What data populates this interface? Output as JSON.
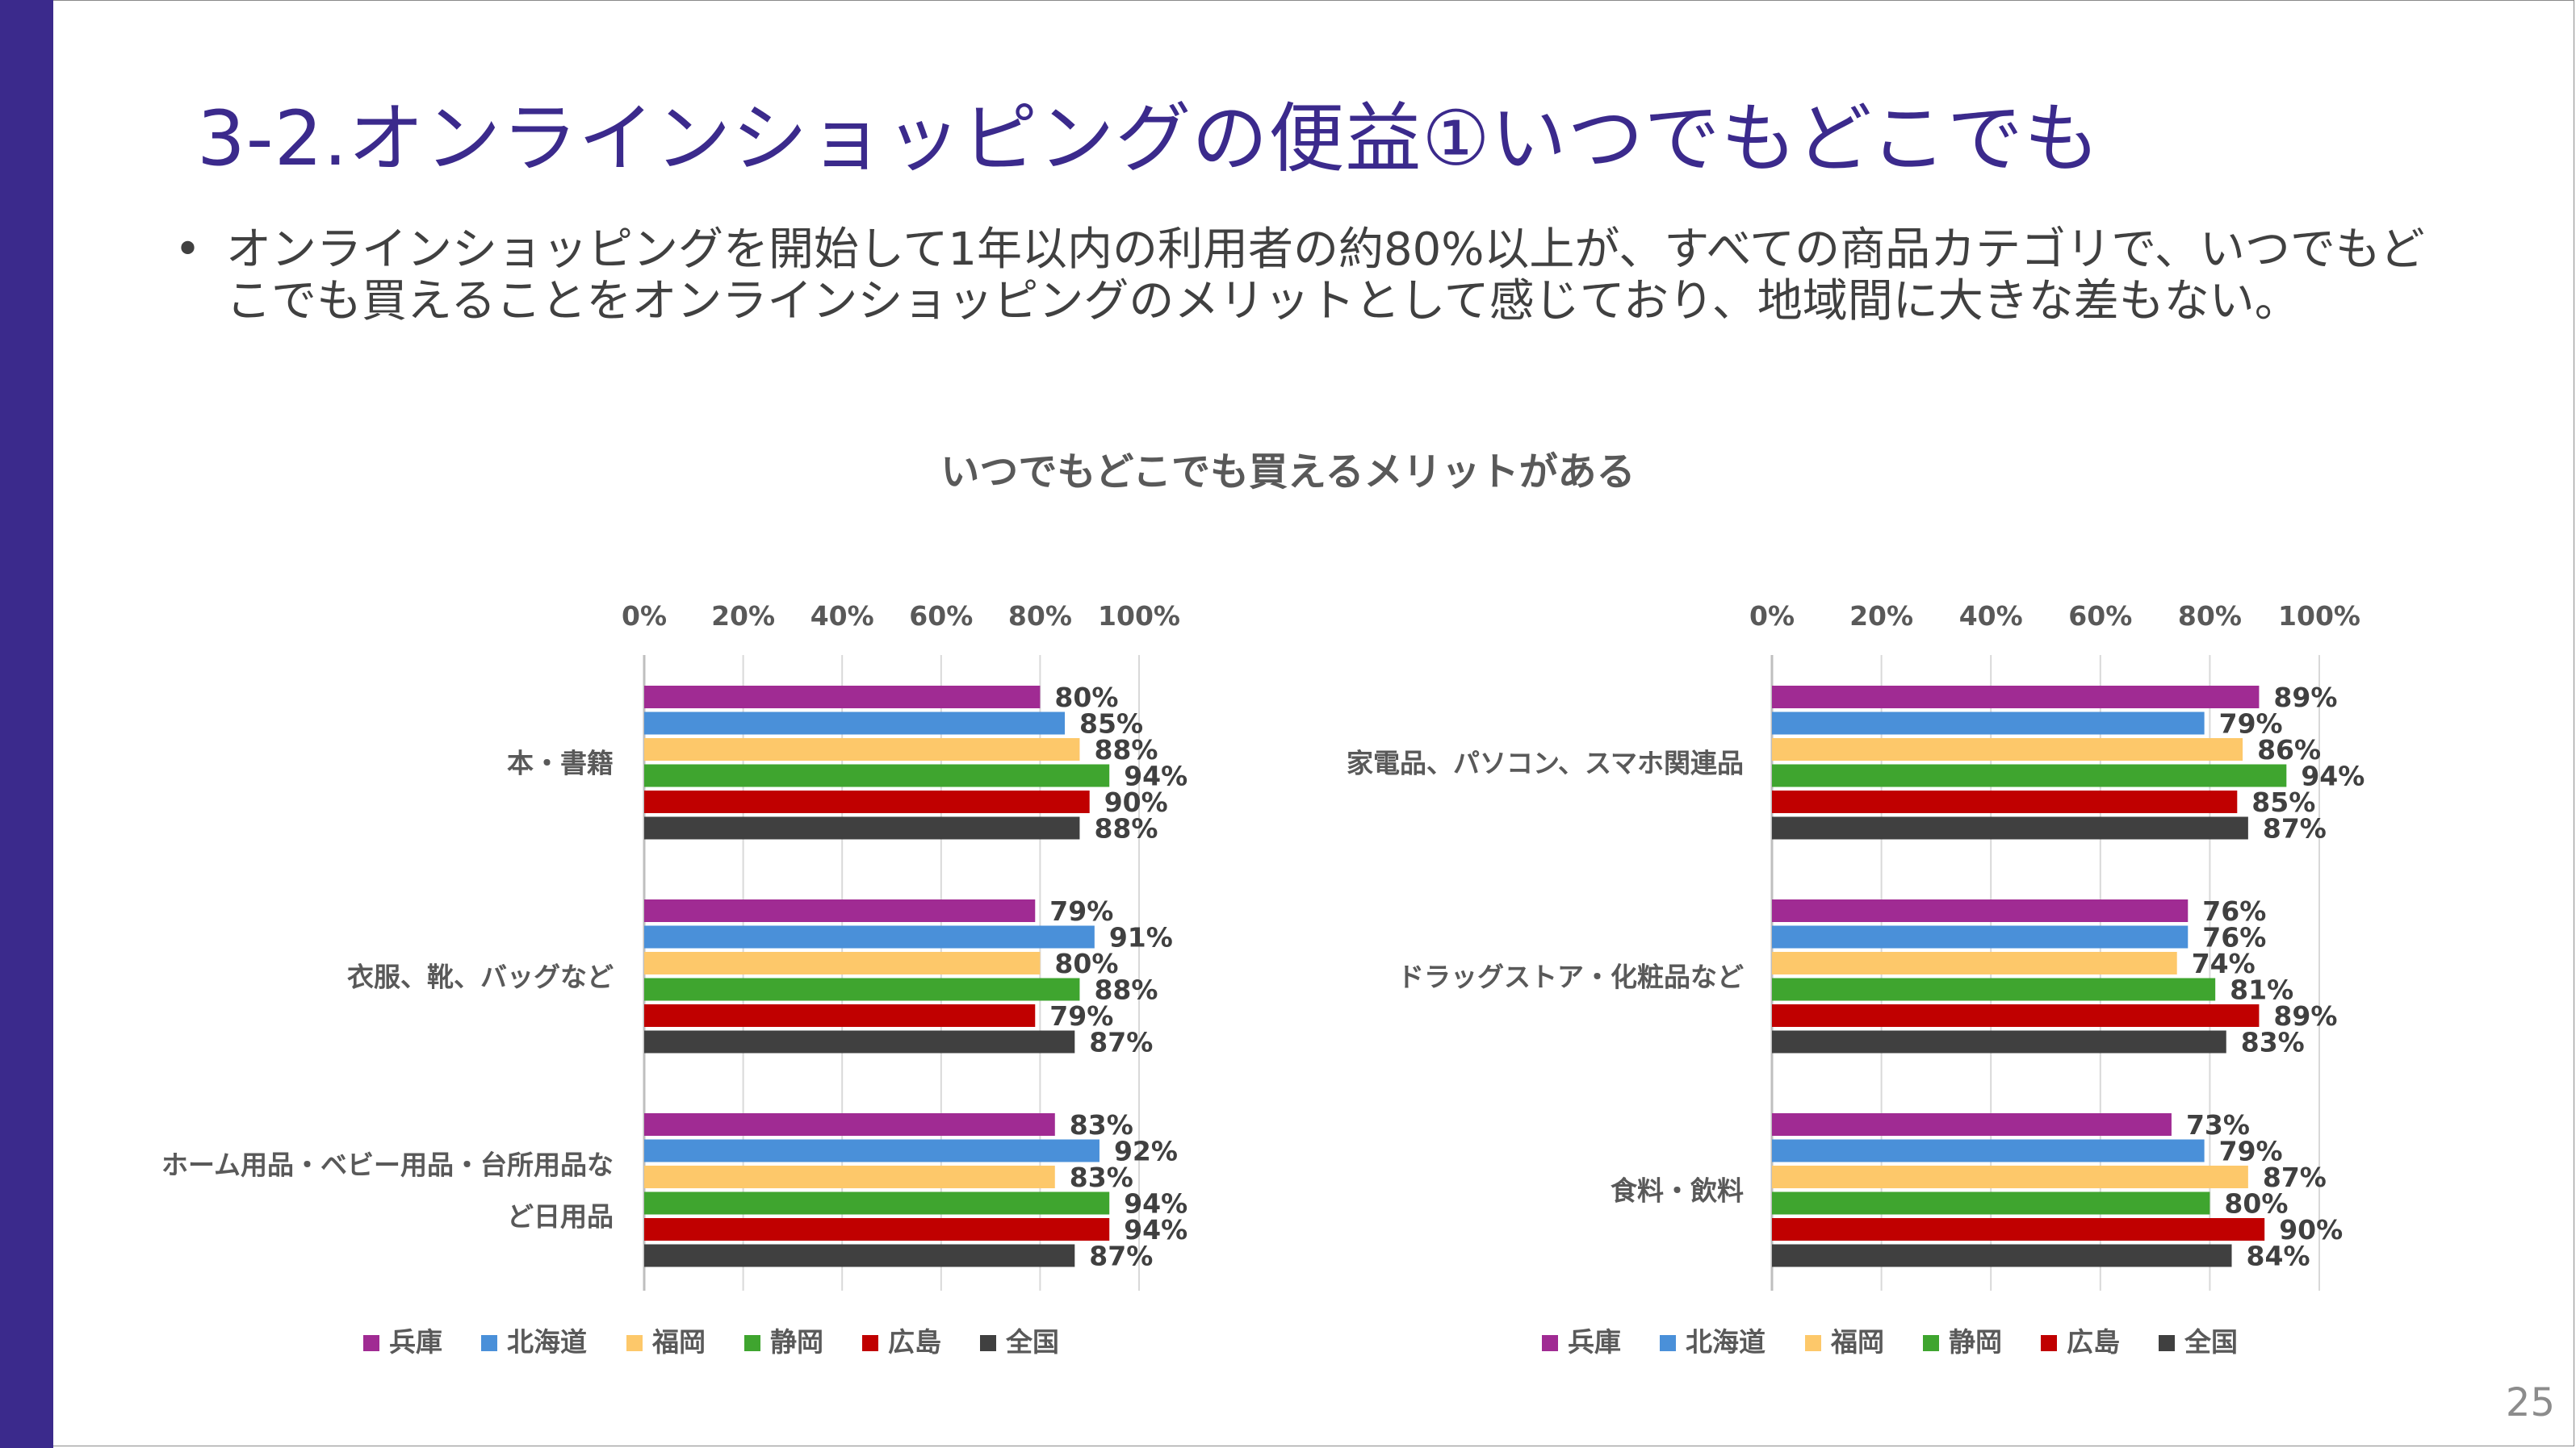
{
  "slide": {
    "title": "3-2.オンラインショッピングの便益①いつでもどこでも",
    "bullet": "オンラインショッピングを開始して1年以内の利用者の約80%以上が、すべての商品カテゴリで、いつでもどこでも買えることをオンラインショッピングのメリットとして感じており、地域間に大きな差もない。",
    "bullet_symbol": "•",
    "page_number": "25",
    "chart_heading": "いつでもどこでも買えるメリットがある"
  },
  "chart_data": [
    {
      "type": "bar",
      "orientation": "horizontal",
      "title": "",
      "xlim": [
        0,
        100
      ],
      "ticks": [
        "0%",
        "20%",
        "40%",
        "60%",
        "80%",
        "100%"
      ],
      "grid": true,
      "legend_position": "bottom",
      "categories": [
        "本・書籍",
        "衣服、靴、バッグなど",
        "ホーム用品・ベビー用品・台所用品など日用品"
      ],
      "category_lines": [
        [
          "本・書籍"
        ],
        [
          "衣服、靴、バッグなど"
        ],
        [
          "ホーム用品・ベビー用品・台所用品な",
          "ど日用品"
        ]
      ],
      "series": [
        {
          "name": "兵庫",
          "color": "#a02b93",
          "values": [
            80,
            79,
            83
          ]
        },
        {
          "name": "北海道",
          "color": "#4a90d9",
          "values": [
            85,
            91,
            92
          ]
        },
        {
          "name": "福岡",
          "color": "#fdc86a",
          "values": [
            88,
            80,
            83
          ]
        },
        {
          "name": "静岡",
          "color": "#3fa52f",
          "values": [
            94,
            88,
            94
          ]
        },
        {
          "name": "広島",
          "color": "#c00000",
          "values": [
            90,
            79,
            94
          ]
        },
        {
          "name": "全国",
          "color": "#404040",
          "values": [
            88,
            87,
            87
          ]
        }
      ]
    },
    {
      "type": "bar",
      "orientation": "horizontal",
      "title": "",
      "xlim": [
        0,
        100
      ],
      "ticks": [
        "0%",
        "20%",
        "40%",
        "60%",
        "80%",
        "100%"
      ],
      "grid": true,
      "legend_position": "bottom",
      "categories": [
        "家電品、パソコン、スマホ関連品",
        "ドラッグストア・化粧品など",
        "食料・飲料"
      ],
      "category_lines": [
        [
          "家電品、パソコン、スマホ関連品"
        ],
        [
          "ドラッグストア・化粧品など"
        ],
        [
          "食料・飲料"
        ]
      ],
      "series": [
        {
          "name": "兵庫",
          "color": "#a02b93",
          "values": [
            89,
            76,
            73
          ]
        },
        {
          "name": "北海道",
          "color": "#4a90d9",
          "values": [
            79,
            76,
            79
          ]
        },
        {
          "name": "福岡",
          "color": "#fdc86a",
          "values": [
            86,
            74,
            87
          ]
        },
        {
          "name": "静岡",
          "color": "#3fa52f",
          "values": [
            94,
            81,
            80
          ]
        },
        {
          "name": "広島",
          "color": "#c00000",
          "values": [
            85,
            89,
            90
          ]
        },
        {
          "name": "全国",
          "color": "#404040",
          "values": [
            87,
            83,
            84
          ]
        }
      ]
    }
  ]
}
